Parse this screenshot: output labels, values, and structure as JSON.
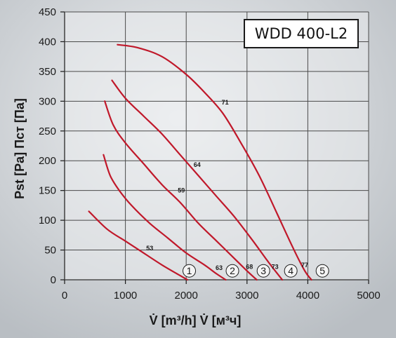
{
  "chart_data": {
    "type": "line",
    "title": "WDD 400-L2",
    "xlabel": "V̇ [m³/h]  V̇ [м³ч]",
    "ylabel": "Pst [Pa]  Пст [Па]",
    "xlim": [
      0,
      5000
    ],
    "ylim": [
      0,
      450
    ],
    "x_ticks": [
      0,
      1000,
      2000,
      3000,
      4000,
      5000
    ],
    "y_ticks": [
      0,
      50,
      100,
      150,
      200,
      250,
      300,
      350,
      400,
      450
    ],
    "grid": true,
    "line_color": "#c0182a",
    "series": [
      {
        "name": "1",
        "x": [
          400,
          700,
          1000,
          1300,
          1600,
          1850,
          2020
        ],
        "y": [
          115,
          85,
          65,
          45,
          25,
          10,
          0
        ]
      },
      {
        "name": "2",
        "x": [
          640,
          750,
          900,
          1100,
          1400,
          1700,
          2000,
          2300,
          2500,
          2650
        ],
        "y": [
          210,
          175,
          150,
          125,
          95,
          70,
          45,
          25,
          10,
          0
        ]
      },
      {
        "name": "3",
        "x": [
          660,
          800,
          1000,
          1300,
          1600,
          1900,
          2200,
          2500,
          2800,
          3000,
          3160
        ],
        "y": [
          300,
          260,
          230,
          195,
          160,
          130,
          95,
          65,
          35,
          15,
          0
        ]
      },
      {
        "name": "4",
        "x": [
          780,
          1000,
          1300,
          1600,
          1900,
          2200,
          2500,
          2800,
          3100,
          3350,
          3580
        ],
        "y": [
          335,
          305,
          275,
          245,
          210,
          175,
          140,
          105,
          65,
          30,
          0
        ]
      },
      {
        "name": "5",
        "x": [
          870,
          1200,
          1600,
          2000,
          2300,
          2600,
          2900,
          3200,
          3500,
          3750,
          3950,
          4060
        ],
        "y": [
          395,
          390,
          375,
          345,
          315,
          280,
          230,
          175,
          110,
          55,
          15,
          0
        ]
      }
    ],
    "annotations": [
      {
        "text": "53",
        "x": 1400,
        "y": 53
      },
      {
        "text": "59",
        "x": 1920,
        "y": 150
      },
      {
        "text": "64",
        "x": 2180,
        "y": 193
      },
      {
        "text": "71",
        "x": 2640,
        "y": 298
      },
      {
        "text": "63",
        "x": 2540,
        "y": 20
      },
      {
        "text": "68",
        "x": 3040,
        "y": 22
      },
      {
        "text": "73",
        "x": 3460,
        "y": 22
      },
      {
        "text": "77",
        "x": 3950,
        "y": 25
      }
    ],
    "circled_markers": [
      {
        "text": "1",
        "x": 2050,
        "y": 8
      },
      {
        "text": "2",
        "x": 2760,
        "y": 8
      },
      {
        "text": "3",
        "x": 3270,
        "y": 8
      },
      {
        "text": "4",
        "x": 3720,
        "y": 8
      },
      {
        "text": "5",
        "x": 4240,
        "y": 8
      }
    ]
  }
}
